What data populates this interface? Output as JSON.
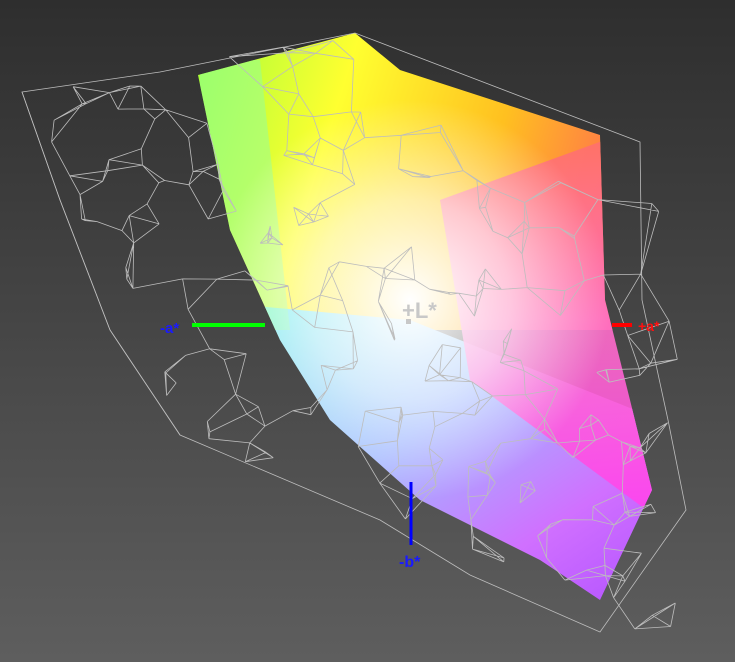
{
  "axes": {
    "neg_a": {
      "label": "-a*",
      "color": "#1a1aff"
    },
    "pos_a": {
      "label": "+a*",
      "color": "#ff1010"
    },
    "pos_l": {
      "label": "+L*",
      "color": "#c8c8c8"
    },
    "neg_b": {
      "label": "-b*",
      "color": "#1a1aff"
    }
  },
  "colors": {
    "background_top": "#2e2e2e",
    "background_bottom": "#5e5e5e",
    "wireframe": "#bdbdbd",
    "axis_green": "#00ff00",
    "axis_red": "#ff0000",
    "axis_blue": "#0000ff"
  }
}
